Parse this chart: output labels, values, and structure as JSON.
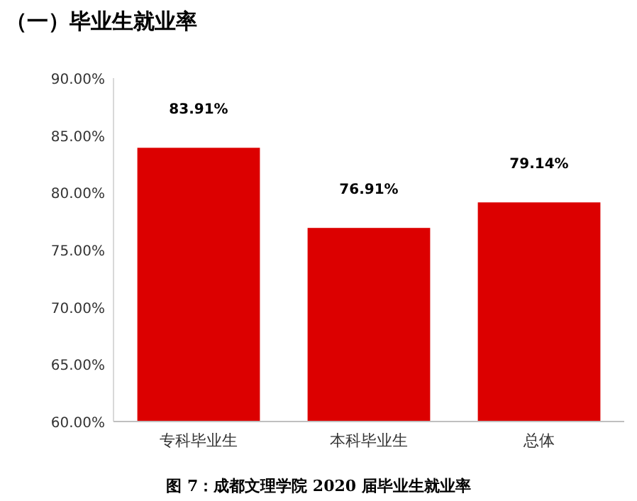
{
  "chart_data": {
    "type": "bar",
    "title": "（一）毕业生就业率",
    "categories": [
      "专科毕业生",
      "本科毕业生",
      "总体"
    ],
    "values": [
      83.91,
      76.91,
      79.14
    ],
    "value_labels": [
      "83.91%",
      "76.91%",
      "79.14%"
    ],
    "color": "#dc0000",
    "ylim": [
      60,
      90
    ],
    "yticks": [
      {
        "value": 60,
        "label": "60.00%"
      },
      {
        "value": 65,
        "label": "65.00%"
      },
      {
        "value": 70,
        "label": "70.00%"
      },
      {
        "value": 75,
        "label": "75.00%"
      },
      {
        "value": 80,
        "label": "80.00%"
      },
      {
        "value": 85,
        "label": "85.00%"
      },
      {
        "value": 90,
        "label": "90.00%"
      }
    ],
    "annotations": [
      "图 7：成都文理学院 2020 届毕业生就业率"
    ]
  }
}
